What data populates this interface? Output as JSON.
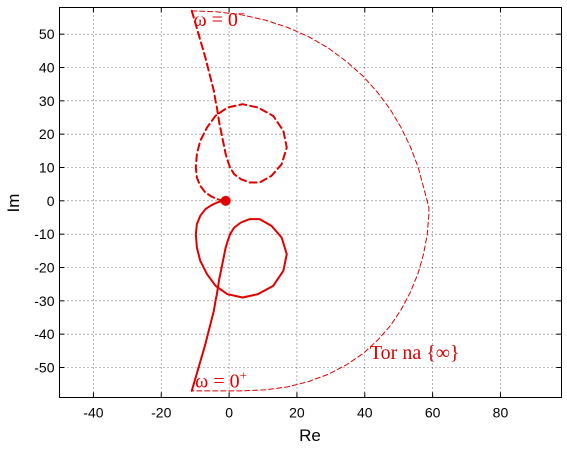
{
  "chart_data": {
    "type": "line",
    "title": "",
    "xlabel": "Re",
    "ylabel": "Im",
    "xlim": [
      -50,
      98
    ],
    "ylim": [
      -59,
      58
    ],
    "xticks": [
      -40,
      -20,
      0,
      20,
      40,
      60,
      80
    ],
    "yticks": [
      -50,
      -40,
      -30,
      -20,
      -10,
      0,
      10,
      20,
      30,
      40,
      50
    ],
    "xtick_labels": [
      "-40",
      "-20",
      "0",
      "20",
      "40",
      "60",
      "80"
    ],
    "ytick_labels": [
      "-50",
      "-40",
      "-30",
      "-20",
      "-10",
      "0",
      "10",
      "20",
      "30",
      "40",
      "50"
    ],
    "grid": true,
    "color": "#e00000",
    "critical_point": {
      "x": -1,
      "y": 0
    },
    "series": [
      {
        "style": "solid",
        "x": [
          -11,
          -9,
          -7,
          -5.5,
          -4.5,
          -4,
          -3.6,
          -3.4,
          -3.2,
          -3,
          -2.6,
          -2,
          -1.4,
          -1,
          -0.4,
          0.3,
          1.5,
          3.5,
          6,
          9,
          12.5,
          15.5,
          17,
          16,
          13,
          8.5,
          4,
          -0.5,
          -4,
          -6.5,
          -8.5,
          -9.5,
          -9.8,
          -9.5,
          -8.5,
          -7,
          -5.2,
          -3.5,
          -2.3,
          -1.5,
          -1,
          -0.8
        ],
        "y": [
          -57,
          -50,
          -43,
          -37,
          -33,
          -30,
          -28,
          -26.7,
          -25.5,
          -24,
          -22,
          -19,
          -16,
          -14,
          -12,
          -10,
          -8,
          -6.5,
          -5.5,
          -5.5,
          -7.5,
          -11,
          -16,
          -21,
          -25.5,
          -28,
          -29,
          -28,
          -25.5,
          -22,
          -18,
          -14,
          -10,
          -7,
          -4.5,
          -2.5,
          -1.3,
          -0.5,
          -0.15,
          -0.05,
          0,
          0
        ]
      },
      {
        "style": "dashed",
        "x": [
          -11,
          -9,
          -7,
          -5.5,
          -4.5,
          -4,
          -3.6,
          -3.4,
          -3.2,
          -3,
          -2.6,
          -2,
          -1.4,
          -1,
          -0.4,
          0.3,
          1.5,
          3.5,
          6,
          9,
          12.5,
          15.5,
          17,
          16,
          13,
          8.5,
          4,
          -0.5,
          -4,
          -6.5,
          -8.5,
          -9.5,
          -9.8,
          -9.5,
          -8.5,
          -7,
          -5.2,
          -3.5,
          -2.3,
          -1.5,
          -1,
          -0.8
        ],
        "y": [
          57,
          50,
          43,
          37,
          33,
          30,
          28,
          26.7,
          25.5,
          24,
          22,
          19,
          16,
          14,
          12,
          10,
          8,
          6.5,
          5.5,
          5.5,
          7.5,
          11,
          16,
          21,
          25.5,
          28,
          29,
          28,
          25.5,
          22,
          18,
          14,
          10,
          7,
          4.5,
          2.5,
          1.3,
          0.5,
          0.15,
          0.05,
          0,
          0
        ]
      },
      {
        "style": "thin-dashed",
        "x": [
          -11,
          -3.5,
          3.8,
          10.7,
          17.3,
          23.5,
          29.3,
          34.6,
          39.5,
          43.8,
          47.6,
          50.8,
          53.5,
          55.7,
          57.3,
          58.4,
          58.9,
          58.9,
          58.4,
          57.3,
          55.7,
          53.5,
          50.8,
          47.6,
          43.8,
          39.5,
          34.6,
          29.3,
          23.5,
          17.3,
          10.7,
          3.8,
          -3.5,
          -11
        ],
        "y": [
          57,
          56.7,
          55.8,
          54.2,
          52,
          49.2,
          45.8,
          41.8,
          37.4,
          32.5,
          27.3,
          21.8,
          16.1,
          10.2,
          4.2,
          0,
          -2,
          -4.2,
          -10.2,
          -16.1,
          -21.8,
          -27.3,
          -32.5,
          -37.4,
          -41.8,
          -45.8,
          -49.2,
          -52,
          -54.2,
          -55.8,
          -56.7,
          -57,
          -57,
          -57
        ]
      }
    ],
    "annotations": [
      {
        "id": "omega_minus",
        "base": "ω = 0",
        "sup": "−",
        "x": -10.5,
        "y": 52.5
      },
      {
        "id": "omega_plus",
        "base": "ω = 0",
        "sup": "+",
        "x": -10,
        "y": -56
      },
      {
        "id": "tor",
        "text": "Tor na {∞}",
        "x": 41.5,
        "y": -47.5
      }
    ]
  }
}
